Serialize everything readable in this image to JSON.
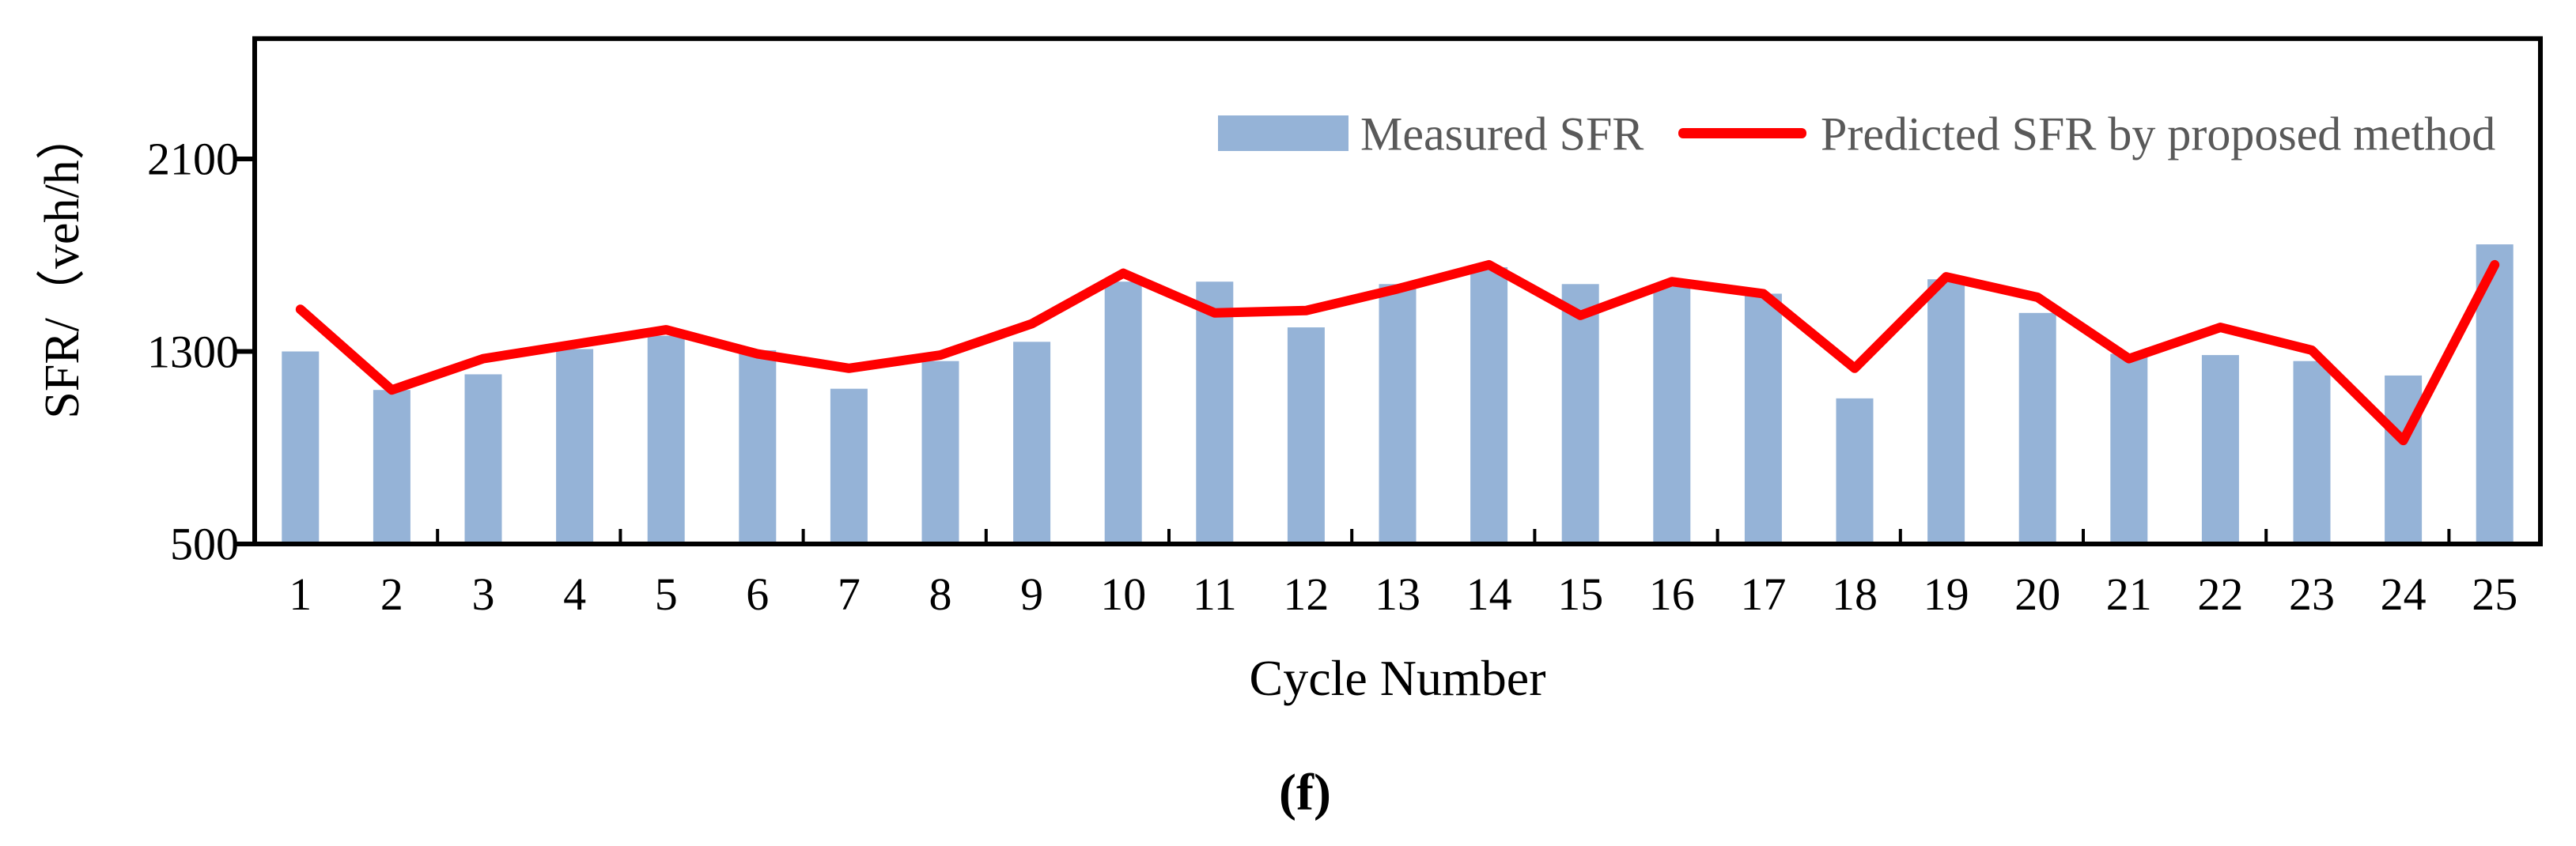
{
  "panel_label": "(f)",
  "axis": {
    "x_title": "Cycle Number",
    "y_title": "SFR/（veh/h）",
    "y_tick_labels": [
      "2100",
      "1300",
      "500"
    ]
  },
  "legend": {
    "measured_label": "Measured SFR",
    "predicted_label": "Predicted SFR by proposed method"
  },
  "colors": {
    "bar_fill": "#95B3D7",
    "line_stroke": "#FF0000",
    "axis_stroke": "#000000",
    "legend_text": "#595959",
    "tick_text": "#000000"
  },
  "chart_data": {
    "type": "bar",
    "subtype": "bar-with-line-overlay",
    "title": "",
    "xlabel": "Cycle Number",
    "ylabel": "SFR/（veh/h）",
    "categories": [
      1,
      2,
      3,
      4,
      5,
      6,
      7,
      8,
      9,
      10,
      11,
      12,
      13,
      14,
      15,
      16,
      17,
      18,
      19,
      20,
      21,
      22,
      23,
      24,
      25
    ],
    "series": [
      {
        "name": "Measured SFR",
        "type": "bar",
        "color": "#95B3D7",
        "values": [
          1300,
          1140,
          1205,
          1310,
          1365,
          1305,
          1145,
          1260,
          1340,
          1590,
          1590,
          1400,
          1580,
          1650,
          1580,
          1570,
          1540,
          1105,
          1600,
          1460,
          1290,
          1285,
          1260,
          1200,
          1745
        ]
      },
      {
        "name": "Predicted SFR by proposed method",
        "type": "line",
        "color": "#FF0000",
        "values": [
          1475,
          1140,
          1270,
          1330,
          1390,
          1290,
          1230,
          1285,
          1415,
          1625,
          1460,
          1470,
          1560,
          1660,
          1450,
          1590,
          1540,
          1230,
          1610,
          1525,
          1270,
          1400,
          1305,
          930,
          1660
        ]
      }
    ],
    "ylim": [
      500,
      2600
    ],
    "yticks": [
      500,
      1300,
      2100
    ],
    "x_tick_interval_labels": 1,
    "x_tick_interval_marks": 2,
    "grid": false,
    "legend_position": "top-right-inside"
  }
}
